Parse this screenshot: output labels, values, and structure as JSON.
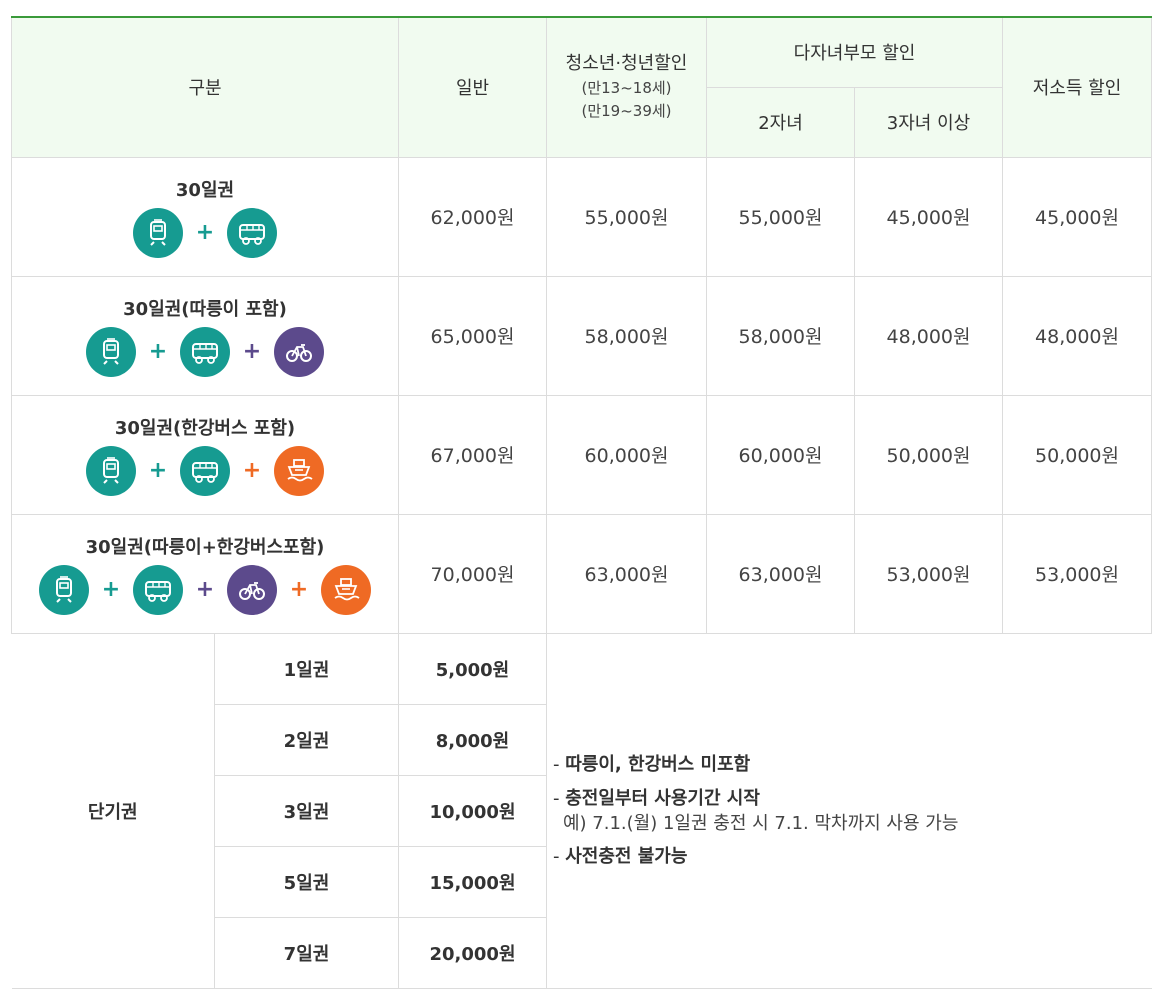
{
  "header": {
    "category": "구분",
    "general": "일반",
    "youth": "청소년·청년할인",
    "youth_sub1": "(만13~18세)",
    "youth_sub2": "(만19~39세)",
    "multi_child": "다자녀부모 할인",
    "two_children": "2자녀",
    "three_children": "3자녀 이상",
    "low_income": "저소득 할인"
  },
  "passes": [
    {
      "name": "30일권",
      "icons": [
        "subway-icon",
        "bus-icon"
      ],
      "prices": [
        "62,000원",
        "55,000원",
        "55,000원",
        "45,000원",
        "45,000원"
      ]
    },
    {
      "name": "30일권(따릉이 포함)",
      "icons": [
        "subway-icon",
        "bus-icon",
        "bicycle-icon"
      ],
      "prices": [
        "65,000원",
        "58,000원",
        "58,000원",
        "48,000원",
        "48,000원"
      ]
    },
    {
      "name": "30일권(한강버스 포함)",
      "icons": [
        "subway-icon",
        "bus-icon",
        "ferry-icon"
      ],
      "prices": [
        "67,000원",
        "60,000원",
        "60,000원",
        "50,000원",
        "50,000원"
      ]
    },
    {
      "name": "30일권(따릉이+한강버스포함)",
      "icons": [
        "subway-icon",
        "bus-icon",
        "bicycle-icon",
        "ferry-icon"
      ],
      "prices": [
        "70,000원",
        "63,000원",
        "63,000원",
        "53,000원",
        "53,000원"
      ]
    }
  ],
  "short_term": {
    "label": "단기권",
    "items": [
      {
        "days": "1일권",
        "price": "5,000원"
      },
      {
        "days": "2일권",
        "price": "8,000원"
      },
      {
        "days": "3일권",
        "price": "10,000원"
      },
      {
        "days": "5일권",
        "price": "15,000원"
      },
      {
        "days": "7일권",
        "price": "20,000원"
      }
    ],
    "notes": {
      "note1": "따릉이, 한강버스 미포함",
      "note2": "충전일부터 사용기간 시작",
      "example": "예) 7.1.(월) 1일권 충전 시 7.1. 막차까지 사용 가능",
      "note3": "사전충전 불가능"
    }
  },
  "colors": {
    "teal": "#169b91",
    "purple": "#5c4a8c",
    "orange": "#ef6a24",
    "header_bg": "#f1fbf0",
    "top_border": "#3a9a3a"
  }
}
